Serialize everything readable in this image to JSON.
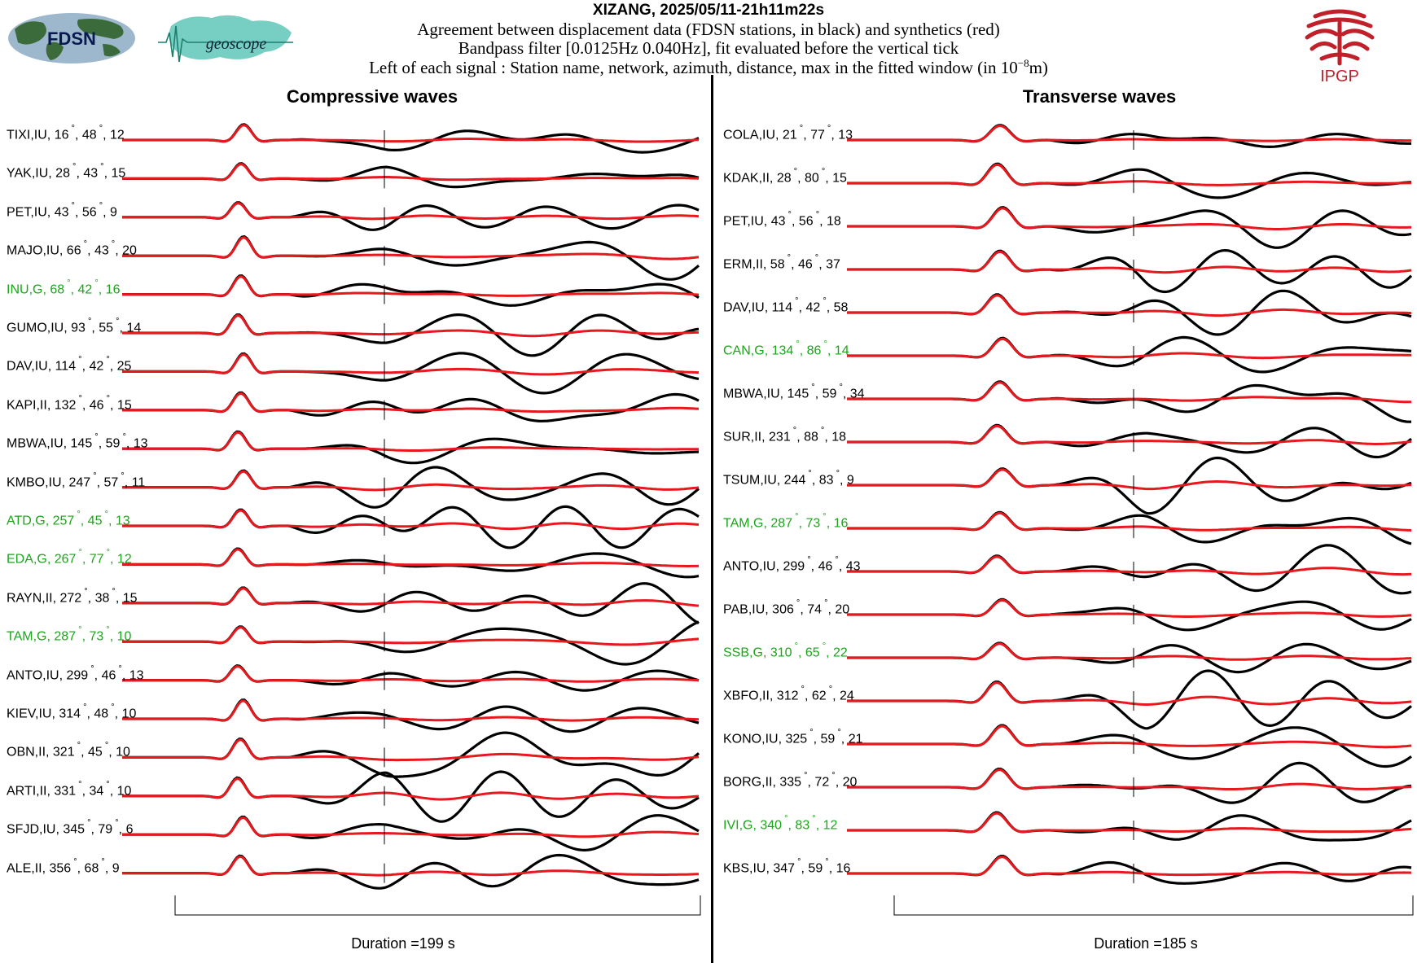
{
  "header": {
    "title": "XIZANG, 2025/05/11-21h11m22s",
    "line1": "Agreement between displacement data (FDSN stations, in black) and synthetics (red)",
    "line2": "Bandpass filter [0.0125Hz 0.040Hz], fit evaluated before the vertical tick",
    "line3_prefix": "Left of each signal : Station name, network, azimuth, distance, max in the fitted window (in 10",
    "line3_exp": "−8",
    "line3_suffix": "m)"
  },
  "logos": {
    "fdsn": "FDSN",
    "geoscope": "geoscope",
    "ipgp": "IPGP"
  },
  "colors": {
    "data": "#000000",
    "synthetic": "#e8191e",
    "green_label": "#1aa51a"
  },
  "chart_data": [
    {
      "type": "line",
      "title": "Compressive waves",
      "duration_label": "Duration =199 s",
      "traces": [
        {
          "station": "TIXI",
          "network": "IU",
          "azimuth": "16",
          "distance": "48",
          "max": "12",
          "highlight": false
        },
        {
          "station": "YAK",
          "network": "IU",
          "azimuth": "28",
          "distance": "43",
          "max": "15",
          "highlight": false
        },
        {
          "station": "PET",
          "network": "IU",
          "azimuth": "43",
          "distance": "56",
          "max": "9",
          "highlight": false
        },
        {
          "station": "MAJO",
          "network": "IU",
          "azimuth": "66",
          "distance": "43",
          "max": "20",
          "highlight": false
        },
        {
          "station": "INU",
          "network": "G",
          "azimuth": "68",
          "distance": "42",
          "max": "16",
          "highlight": true
        },
        {
          "station": "GUMO",
          "network": "IU",
          "azimuth": "93",
          "distance": "55",
          "max": "14",
          "highlight": false
        },
        {
          "station": "DAV",
          "network": "IU",
          "azimuth": "114",
          "distance": "42",
          "max": "25",
          "highlight": false
        },
        {
          "station": "KAPI",
          "network": "II",
          "azimuth": "132",
          "distance": "46",
          "max": "15",
          "highlight": false
        },
        {
          "station": "MBWA",
          "network": "IU",
          "azimuth": "145",
          "distance": "59",
          "max": "13",
          "highlight": false
        },
        {
          "station": "KMBO",
          "network": "IU",
          "azimuth": "247",
          "distance": "57",
          "max": "11",
          "highlight": false
        },
        {
          "station": "ATD",
          "network": "G",
          "azimuth": "257",
          "distance": "45",
          "max": "13",
          "highlight": true
        },
        {
          "station": "EDA",
          "network": "G",
          "azimuth": "267",
          "distance": "77",
          "max": "12",
          "highlight": true
        },
        {
          "station": "RAYN",
          "network": "II",
          "azimuth": "272",
          "distance": "38",
          "max": "15",
          "highlight": false
        },
        {
          "station": "TAM",
          "network": "G",
          "azimuth": "287",
          "distance": "73",
          "max": "10",
          "highlight": true
        },
        {
          "station": "ANTO",
          "network": "IU",
          "azimuth": "299",
          "distance": "46",
          "max": "13",
          "highlight": false
        },
        {
          "station": "KIEV",
          "network": "IU",
          "azimuth": "314",
          "distance": "48",
          "max": "10",
          "highlight": false
        },
        {
          "station": "OBN",
          "network": "II",
          "azimuth": "321",
          "distance": "45",
          "max": "10",
          "highlight": false
        },
        {
          "station": "ARTI",
          "network": "II",
          "azimuth": "331",
          "distance": "34",
          "max": "10",
          "highlight": false
        },
        {
          "station": "SFJD",
          "network": "IU",
          "azimuth": "345",
          "distance": "79",
          "max": "6",
          "highlight": false
        },
        {
          "station": "ALE",
          "network": "II",
          "azimuth": "356",
          "distance": "68",
          "max": "9",
          "highlight": false
        }
      ]
    },
    {
      "type": "line",
      "title": "Transverse waves",
      "duration_label": "Duration =185 s",
      "traces": [
        {
          "station": "COLA",
          "network": "IU",
          "azimuth": "21",
          "distance": "77",
          "max": "13",
          "highlight": false
        },
        {
          "station": "KDAK",
          "network": "II",
          "azimuth": "28",
          "distance": "80",
          "max": "15",
          "highlight": false
        },
        {
          "station": "PET",
          "network": "IU",
          "azimuth": "43",
          "distance": "56",
          "max": "18",
          "highlight": false
        },
        {
          "station": "ERM",
          "network": "II",
          "azimuth": "58",
          "distance": "46",
          "max": "37",
          "highlight": false
        },
        {
          "station": "DAV",
          "network": "IU",
          "azimuth": "114",
          "distance": "42",
          "max": "58",
          "highlight": false
        },
        {
          "station": "CAN",
          "network": "G",
          "azimuth": "134",
          "distance": "86",
          "max": "14",
          "highlight": true
        },
        {
          "station": "MBWA",
          "network": "IU",
          "azimuth": "145",
          "distance": "59",
          "max": "34",
          "highlight": false
        },
        {
          "station": "SUR",
          "network": "II",
          "azimuth": "231",
          "distance": "88",
          "max": "18",
          "highlight": false
        },
        {
          "station": "TSUM",
          "network": "IU",
          "azimuth": "244",
          "distance": "83",
          "max": "9",
          "highlight": false
        },
        {
          "station": "TAM",
          "network": "G",
          "azimuth": "287",
          "distance": "73",
          "max": "16",
          "highlight": true
        },
        {
          "station": "ANTO",
          "network": "IU",
          "azimuth": "299",
          "distance": "46",
          "max": "43",
          "highlight": false
        },
        {
          "station": "PAB",
          "network": "IU",
          "azimuth": "306",
          "distance": "74",
          "max": "20",
          "highlight": false
        },
        {
          "station": "SSB",
          "network": "G",
          "azimuth": "310",
          "distance": "65",
          "max": "22",
          "highlight": true
        },
        {
          "station": "XBFO",
          "network": "II",
          "azimuth": "312",
          "distance": "62",
          "max": "24",
          "highlight": false
        },
        {
          "station": "KONO",
          "network": "IU",
          "azimuth": "325",
          "distance": "59",
          "max": "21",
          "highlight": false
        },
        {
          "station": "BORG",
          "network": "II",
          "azimuth": "335",
          "distance": "72",
          "max": "20",
          "highlight": false
        },
        {
          "station": "IVI",
          "network": "G",
          "azimuth": "340",
          "distance": "83",
          "max": "12",
          "highlight": true
        },
        {
          "station": "KBS",
          "network": "IU",
          "azimuth": "347",
          "distance": "59",
          "max": "16",
          "highlight": false
        }
      ]
    }
  ]
}
